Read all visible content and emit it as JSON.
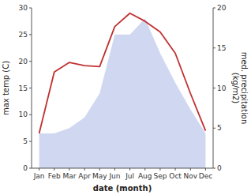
{
  "chart_data": {
    "type": "line",
    "categories": [
      "Jan",
      "Feb",
      "Mar",
      "Apr",
      "May",
      "Jun",
      "Jul",
      "Aug",
      "Sep",
      "Oct",
      "Nov",
      "Dec"
    ],
    "series": [
      {
        "type": "area",
        "color": "#b0bce8",
        "values": [
          6.5,
          6.5,
          7.5,
          9.5,
          14.0,
          25.0,
          25.0,
          28.0,
          21.5,
          16.0,
          11.0,
          6.5
        ]
      },
      {
        "type": "line",
        "color": "#c03030",
        "values": [
          6.5,
          18.0,
          19.8,
          19.2,
          19.0,
          26.5,
          29.0,
          27.5,
          25.5,
          21.5,
          14.0,
          7.0
        ]
      }
    ],
    "xlabel": "date (month)",
    "ylabel": "max temp (C)",
    "y2label": "med. precipitation\n(kg/m2)",
    "ylim": [
      0,
      30
    ],
    "yticks": [
      0,
      5,
      10,
      15,
      20,
      25,
      30
    ],
    "y2lim": [
      0,
      20
    ],
    "y2ticks": [
      0,
      5,
      10,
      15,
      20
    ],
    "grid": false
  }
}
